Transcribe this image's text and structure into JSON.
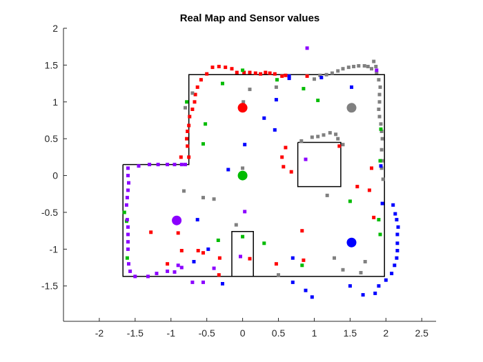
{
  "chart_data": {
    "type": "scatter",
    "title": "Real Map and Sensor values",
    "xlabel": "",
    "ylabel": "",
    "xlim": [
      -2.5,
      2.7
    ],
    "ylim": [
      -1.98,
      2.0
    ],
    "xticks": [
      -2,
      -1.5,
      -1,
      -0.5,
      0,
      0.5,
      1,
      1.5,
      2,
      2.5
    ],
    "yticks": [
      -1.5,
      -1,
      -0.5,
      0,
      0.5,
      1,
      1.5,
      2
    ],
    "xtick_labels": [
      "-2",
      "-1.5",
      "-1",
      "-0.5",
      "0",
      "0.5",
      "1",
      "1.5",
      "2",
      "2.5"
    ],
    "ytick_labels": [
      "-1.5",
      "-1",
      "-0.5",
      "0",
      "0.5",
      "1",
      "1.5",
      "2"
    ],
    "grid": false,
    "map_walls": [
      [
        [
          -1.67,
          0.15
        ],
        [
          -0.75,
          0.15
        ],
        [
          -0.75,
          1.37
        ],
        [
          1.98,
          1.37
        ],
        [
          1.98,
          -1.37
        ],
        [
          -1.67,
          -1.37
        ],
        [
          -1.67,
          0.15
        ]
      ],
      [
        [
          0.77,
          0.45
        ],
        [
          1.37,
          0.45
        ],
        [
          1.37,
          -0.15
        ],
        [
          0.77,
          -0.15
        ],
        [
          0.77,
          0.45
        ]
      ],
      [
        [
          -0.15,
          -1.37
        ],
        [
          -0.15,
          -0.76
        ],
        [
          0.15,
          -0.76
        ],
        [
          0.15,
          -1.37
        ]
      ]
    ],
    "robots": [
      {
        "color": "#ff0000",
        "x": 0.0,
        "y": 0.92
      },
      {
        "color": "#808080",
        "x": 1.52,
        "y": 0.92
      },
      {
        "color": "#00bb00",
        "x": 0.0,
        "y": 0.0
      },
      {
        "color": "#8b00ff",
        "x": -0.92,
        "y": -0.61
      },
      {
        "color": "#0000ff",
        "x": 1.52,
        "y": -0.91
      }
    ],
    "series": [
      {
        "color": "#ff0000",
        "points": [
          [
            -0.75,
            0.25
          ],
          [
            -0.77,
            0.4
          ],
          [
            -0.78,
            0.5
          ],
          [
            -0.77,
            0.6
          ],
          [
            -0.75,
            0.68
          ],
          [
            -0.74,
            0.8
          ],
          [
            -0.7,
            0.9
          ],
          [
            -0.67,
            1.0
          ],
          [
            -0.66,
            1.1
          ],
          [
            -0.63,
            1.2
          ],
          [
            -0.58,
            1.3
          ],
          [
            -0.5,
            1.38
          ],
          [
            -0.42,
            1.47
          ],
          [
            -0.33,
            1.48
          ],
          [
            -0.24,
            1.47
          ],
          [
            -0.15,
            1.45
          ],
          [
            -0.08,
            1.4
          ],
          [
            0.02,
            1.4
          ],
          [
            0.1,
            1.4
          ],
          [
            0.18,
            1.39
          ],
          [
            0.25,
            1.38
          ],
          [
            0.32,
            1.4
          ],
          [
            0.38,
            1.39
          ],
          [
            0.45,
            1.38
          ],
          [
            0.55,
            1.35
          ],
          [
            0.6,
            1.36
          ],
          [
            0.9,
            1.35
          ],
          [
            -0.86,
            0.25
          ],
          [
            -0.9,
            -0.78
          ],
          [
            -1.28,
            -0.77
          ],
          [
            -1.05,
            -1.2
          ],
          [
            -0.85,
            -1.02
          ],
          [
            -0.62,
            -1.02
          ],
          [
            -0.55,
            -1.05
          ],
          [
            -0.32,
            -1.12
          ],
          [
            -0.33,
            -1.35
          ],
          [
            0.1,
            -1.13
          ],
          [
            0.47,
            -1.2
          ],
          [
            0.85,
            -1.15
          ],
          [
            0.83,
            -0.75
          ],
          [
            0.6,
            0.38
          ],
          [
            0.55,
            0.25
          ],
          [
            0.57,
            0.12
          ],
          [
            0.68,
            0.05
          ],
          [
            1.35,
            0.4
          ],
          [
            1.8,
            0.1
          ],
          [
            1.6,
            -0.15
          ],
          [
            1.77,
            -0.2
          ],
          [
            1.83,
            -0.57
          ]
        ]
      },
      {
        "color": "#808080",
        "points": [
          [
            -0.7,
            1.12
          ],
          [
            -0.8,
            0.92
          ],
          [
            0.0,
            0.1
          ],
          [
            0.01,
            1.0
          ],
          [
            0.1,
            1.17
          ],
          [
            0.47,
            1.2
          ],
          [
            0.82,
            0.47
          ],
          [
            0.97,
            0.52
          ],
          [
            1.05,
            0.53
          ],
          [
            1.13,
            0.55
          ],
          [
            1.22,
            0.58
          ],
          [
            1.3,
            0.56
          ],
          [
            1.33,
            0.5
          ],
          [
            1.4,
            0.42
          ],
          [
            1.18,
            -0.27
          ],
          [
            -0.82,
            -0.21
          ],
          [
            -0.55,
            -0.3
          ],
          [
            -0.4,
            -0.32
          ],
          [
            -0.09,
            -0.67
          ],
          [
            0.5,
            -1.35
          ],
          [
            1.28,
            -1.12
          ],
          [
            1.4,
            -1.28
          ],
          [
            1.65,
            -1.32
          ],
          [
            1.71,
            -1.17
          ],
          [
            1.0,
            1.31
          ],
          [
            1.08,
            1.36
          ],
          [
            1.17,
            1.37
          ],
          [
            1.25,
            1.39
          ],
          [
            1.33,
            1.42
          ],
          [
            1.4,
            1.45
          ],
          [
            1.48,
            1.47
          ],
          [
            1.55,
            1.48
          ],
          [
            1.62,
            1.49
          ],
          [
            1.7,
            1.49
          ],
          [
            1.75,
            1.48
          ],
          [
            1.8,
            1.45
          ],
          [
            1.87,
            1.4
          ],
          [
            1.9,
            1.3
          ],
          [
            1.92,
            1.2
          ],
          [
            1.91,
            1.1
          ],
          [
            1.91,
            1.0
          ],
          [
            1.9,
            0.9
          ],
          [
            1.91,
            0.8
          ],
          [
            1.93,
            0.7
          ],
          [
            1.94,
            0.6
          ],
          [
            1.95,
            0.5
          ],
          [
            1.94,
            0.35
          ],
          [
            1.95,
            0.2
          ],
          [
            1.94,
            0.1
          ],
          [
            1.96,
            -0.05
          ],
          [
            1.86,
            1.48
          ],
          [
            1.83,
            1.55
          ]
        ]
      },
      {
        "color": "#00bb00",
        "points": [
          [
            -0.78,
            1.0
          ],
          [
            -0.28,
            1.25
          ],
          [
            -0.52,
            0.7
          ],
          [
            -0.55,
            0.43
          ],
          [
            0.0,
            1.43
          ],
          [
            0.48,
            1.3
          ],
          [
            0.85,
            1.18
          ],
          [
            1.05,
            1.02
          ],
          [
            1.93,
            0.63
          ],
          [
            1.92,
            0.2
          ],
          [
            1.5,
            -0.35
          ],
          [
            1.9,
            -0.6
          ],
          [
            -1.65,
            -0.5
          ],
          [
            -1.62,
            -0.62
          ],
          [
            -1.61,
            -1.12
          ],
          [
            -0.34,
            -0.88
          ],
          [
            0.0,
            -0.83
          ],
          [
            0.3,
            -0.92
          ],
          [
            0.83,
            -1.22
          ],
          [
            1.92,
            -0.8
          ]
        ]
      },
      {
        "color": "#8b00ff",
        "points": [
          [
            0.9,
            1.73
          ],
          [
            0.88,
            0.22
          ],
          [
            1.87,
            1.43
          ],
          [
            -1.6,
            0.1
          ],
          [
            -1.6,
            0.0
          ],
          [
            -1.59,
            -0.1
          ],
          [
            -1.6,
            -0.2
          ],
          [
            -1.61,
            -0.3
          ],
          [
            -1.62,
            -0.4
          ],
          [
            -1.61,
            -0.6
          ],
          [
            -1.6,
            -0.7
          ],
          [
            -1.6,
            -0.8
          ],
          [
            -1.6,
            -0.9
          ],
          [
            -1.6,
            -1.0
          ],
          [
            -1.59,
            -1.2
          ],
          [
            -1.57,
            -1.3
          ],
          [
            -1.5,
            -1.37
          ],
          [
            -1.32,
            -1.37
          ],
          [
            -1.2,
            -1.33
          ],
          [
            -1.05,
            -1.3
          ],
          [
            -0.95,
            -1.31
          ],
          [
            -0.9,
            -1.22
          ],
          [
            -0.85,
            -1.25
          ],
          [
            -0.7,
            -1.45
          ],
          [
            -0.55,
            -1.45
          ],
          [
            -0.4,
            -1.26
          ],
          [
            -1.45,
            0.13
          ],
          [
            -1.3,
            0.15
          ],
          [
            -1.18,
            0.15
          ],
          [
            -1.05,
            0.15
          ],
          [
            -0.95,
            0.15
          ],
          [
            -0.85,
            0.15
          ],
          [
            -0.8,
            0.15
          ],
          [
            0.03,
            -0.49
          ],
          [
            -0.03,
            -1.1
          ]
        ]
      },
      {
        "color": "#0000ff",
        "points": [
          [
            0.03,
            0.42
          ],
          [
            -0.2,
            0.08
          ],
          [
            -0.63,
            -0.6
          ],
          [
            -0.48,
            -1.0
          ],
          [
            -0.68,
            -1.17
          ],
          [
            -0.28,
            -1.47
          ],
          [
            0.7,
            -1.12
          ],
          [
            0.47,
            1.03
          ],
          [
            0.65,
            1.35
          ],
          [
            0.3,
            0.78
          ],
          [
            0.45,
            0.62
          ],
          [
            0.65,
            1.32
          ],
          [
            1.1,
            1.33
          ],
          [
            1.52,
            1.2
          ],
          [
            1.93,
            0.13
          ],
          [
            1.95,
            -0.38
          ],
          [
            2.1,
            -0.4
          ],
          [
            2.13,
            -0.52
          ],
          [
            2.15,
            -0.6
          ],
          [
            2.17,
            -0.7
          ],
          [
            2.16,
            -0.8
          ],
          [
            2.16,
            -0.92
          ],
          [
            2.16,
            -1.02
          ],
          [
            2.15,
            -1.12
          ],
          [
            2.12,
            -1.22
          ],
          [
            2.08,
            -1.33
          ],
          [
            2.0,
            -1.42
          ],
          [
            1.9,
            -1.5
          ],
          [
            1.85,
            -1.6
          ],
          [
            1.68,
            -1.62
          ],
          [
            1.5,
            -1.5
          ],
          [
            0.97,
            -1.65
          ],
          [
            0.88,
            -1.56
          ],
          [
            0.7,
            -1.45
          ]
        ]
      }
    ]
  }
}
